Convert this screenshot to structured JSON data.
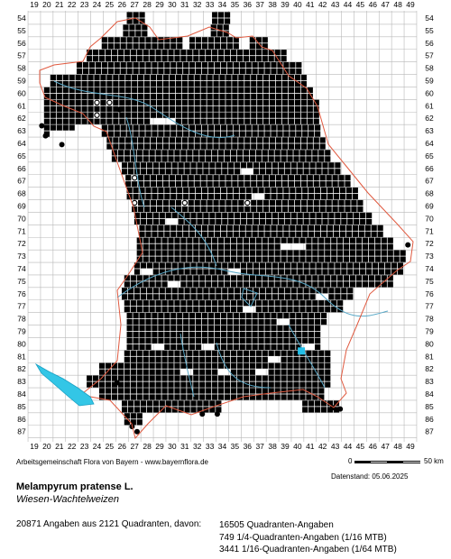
{
  "map": {
    "x_labels": [
      "19",
      "20",
      "21",
      "22",
      "23",
      "24",
      "25",
      "26",
      "27",
      "28",
      "29",
      "30",
      "31",
      "32",
      "33",
      "34",
      "35",
      "36",
      "37",
      "38",
      "39",
      "40",
      "41",
      "42",
      "43",
      "44",
      "45",
      "46",
      "47",
      "48",
      "49"
    ],
    "y_labels": [
      "54",
      "55",
      "56",
      "57",
      "58",
      "59",
      "60",
      "61",
      "62",
      "63",
      "64",
      "65",
      "66",
      "67",
      "68",
      "69",
      "70",
      "71",
      "72",
      "73",
      "74",
      "75",
      "76",
      "77",
      "78",
      "79",
      "80",
      "81",
      "82",
      "83",
      "84",
      "85",
      "86",
      "87"
    ],
    "colors": {
      "grid": "#b8b8b8",
      "dot": "#000000",
      "hollow_dot_fill": "#ffffff",
      "border": "#e05a40",
      "rivers": "#5aa9c8",
      "lake": "#33c6e6",
      "highlight": "#22bfe8"
    },
    "legend_symbols": [
      "filled-square = quadrant record",
      "filled-dot = quarter-quadrant record",
      "hollow-dot = sixteenth-quadrant record"
    ]
  },
  "footer": {
    "credit": "Arbeitsgemeinschaft Flora von Bayern - www.bayernflora.de",
    "scale_start": "0",
    "scale_end": "50 km",
    "date": "Datenstand: 05.06.2025",
    "species_latin": "Melampyrum pratense L.",
    "species_german": "Wiesen-Wachtelweizen",
    "stats_total": "20871 Angaben aus 2121 Quadranten, davon:",
    "stats_q": "16505 Quadranten-Angaben",
    "stats_q4": "749 1/4-Quadranten-Angaben (1/16 MTB)",
    "stats_q16": "3441 1/16-Quadranten-Angaben (1/64 MTB)"
  }
}
